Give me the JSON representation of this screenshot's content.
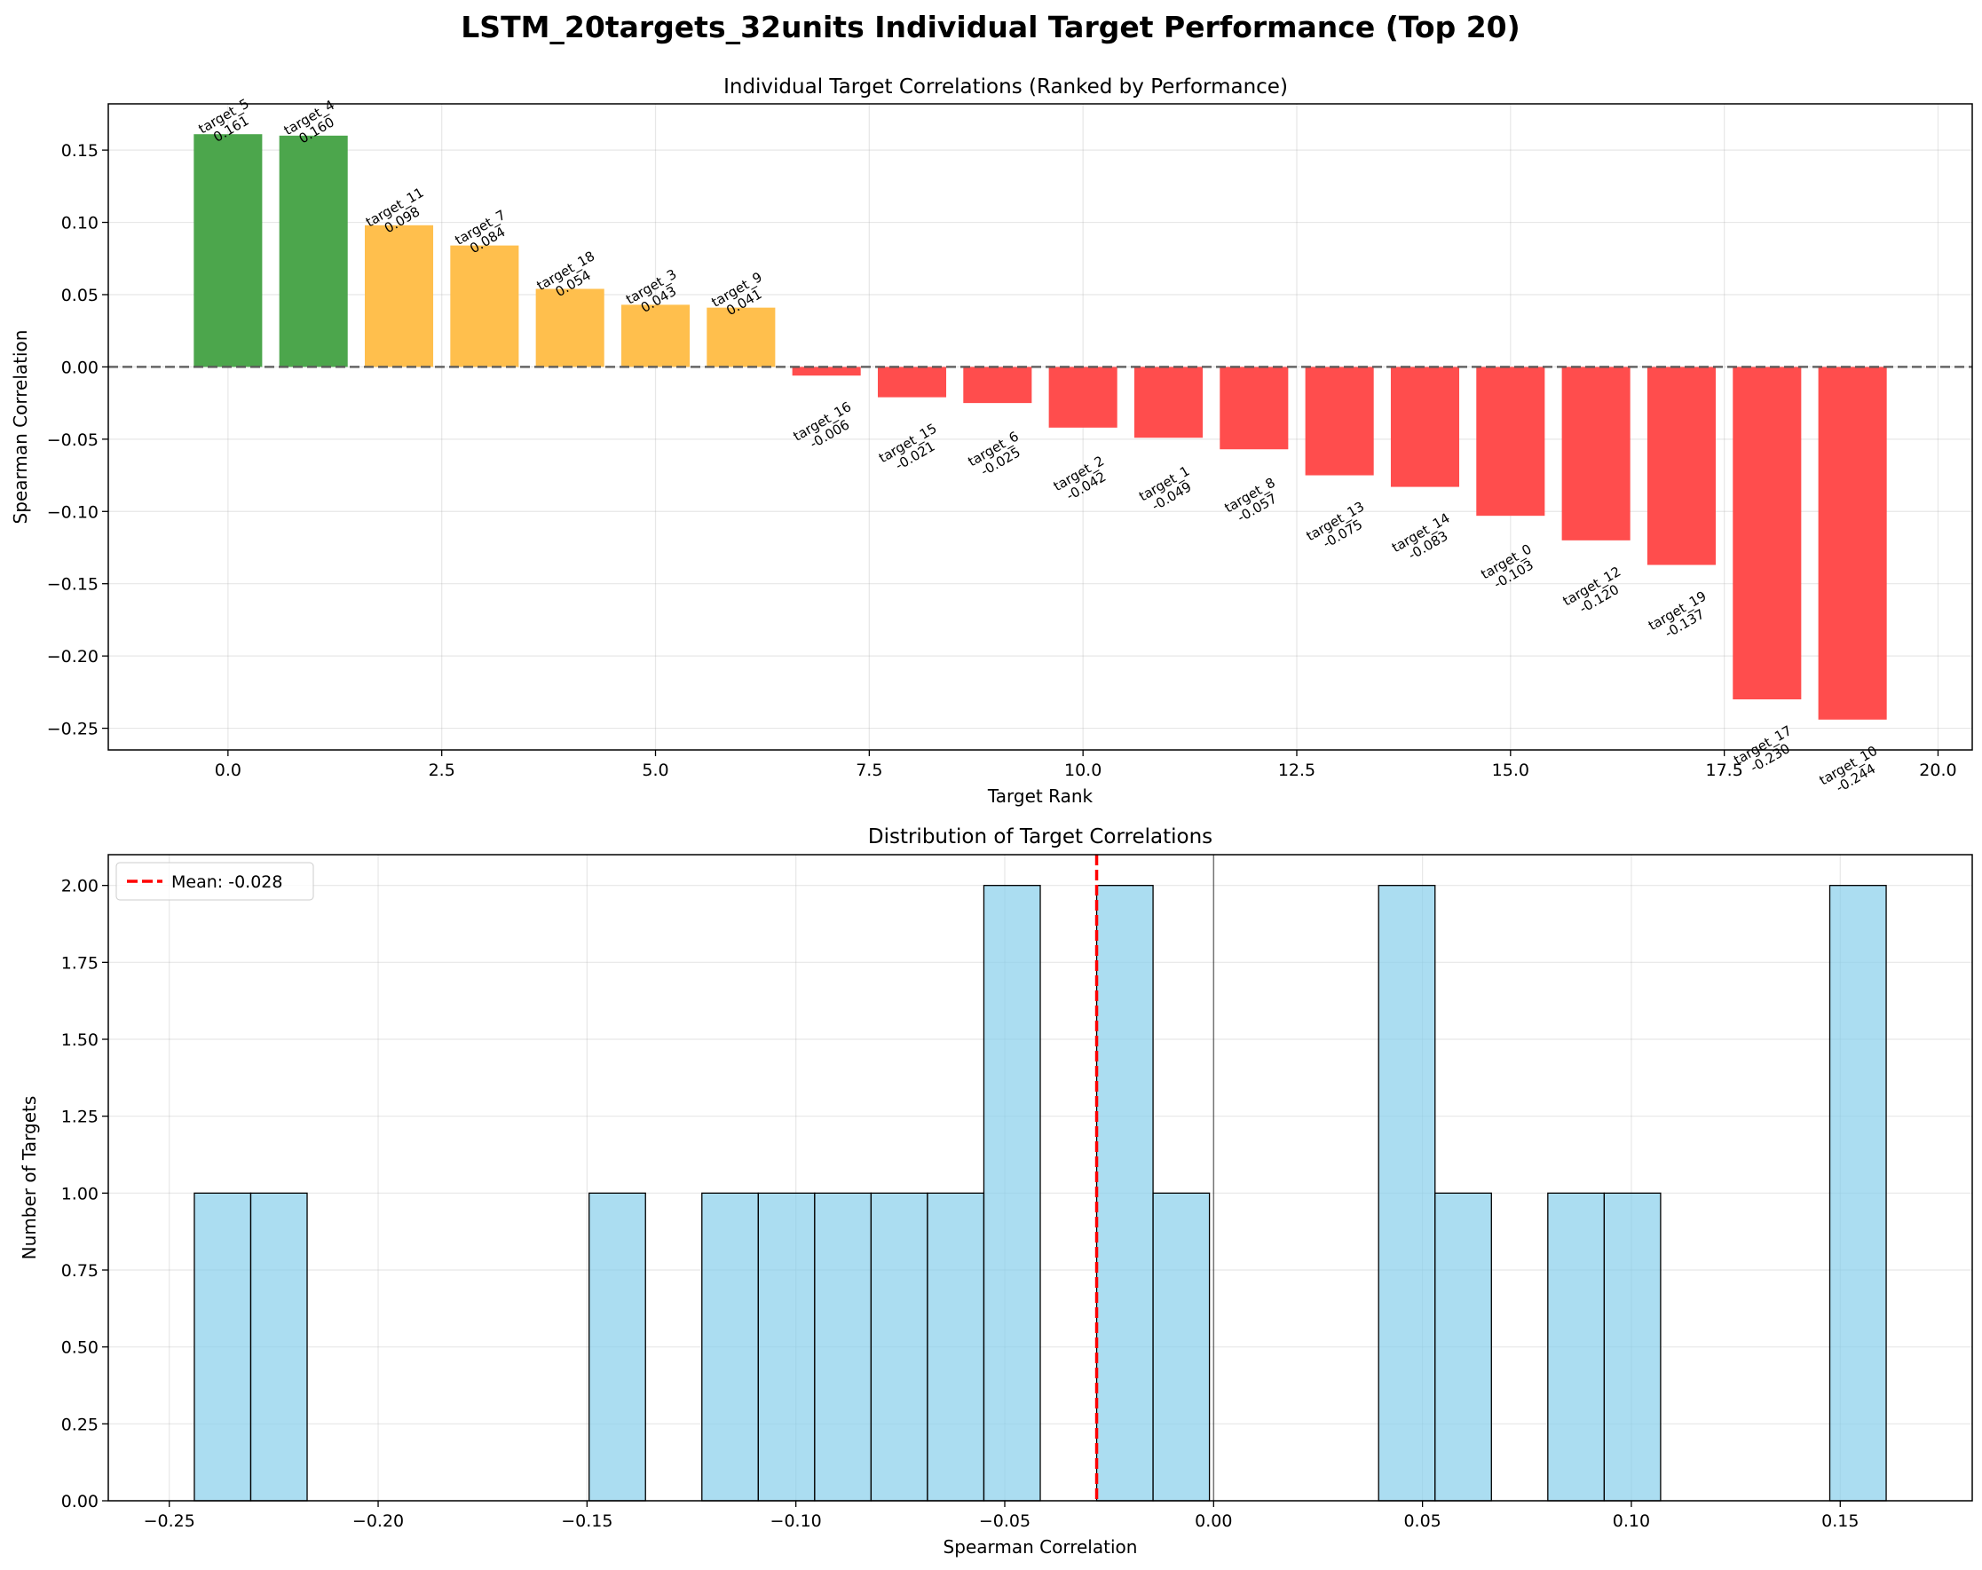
{
  "figure": {
    "suptitle": "LSTM_20targets_32units Individual Target Performance (Top 20)"
  },
  "chart_data": [
    {
      "type": "bar",
      "title": "Individual Target Correlations (Ranked by Performance)",
      "xlabel": "Target Rank",
      "ylabel": "Spearman Correlation",
      "x": [
        0,
        1,
        2,
        3,
        4,
        5,
        6,
        7,
        8,
        9,
        10,
        11,
        12,
        13,
        14,
        15,
        16,
        17,
        18,
        19
      ],
      "categories": [
        "target_5",
        "target_4",
        "target_11",
        "target_7",
        "target_18",
        "target_3",
        "target_9",
        "target_16",
        "target_15",
        "target_6",
        "target_2",
        "target_1",
        "target_8",
        "target_13",
        "target_14",
        "target_0",
        "target_12",
        "target_19",
        "target_17",
        "target_10"
      ],
      "values": [
        0.161,
        0.16,
        0.098,
        0.084,
        0.054,
        0.043,
        0.041,
        -0.006,
        -0.021,
        -0.025,
        -0.042,
        -0.049,
        -0.057,
        -0.075,
        -0.083,
        -0.103,
        -0.12,
        -0.137,
        -0.23,
        -0.244
      ],
      "value_labels": [
        "0.161",
        "0.160",
        "0.098",
        "0.084",
        "0.054",
        "0.043",
        "0.041",
        "-0.006",
        "-0.021",
        "-0.025",
        "-0.042",
        "-0.049",
        "-0.057",
        "-0.075",
        "-0.083",
        "-0.103",
        "-0.120",
        "-0.137",
        "-0.230",
        "-0.244"
      ],
      "colors": [
        "#4ca64c",
        "#4ca64c",
        "#ffbf4d",
        "#ffbf4d",
        "#ffbf4d",
        "#ffbf4d",
        "#ffbf4d",
        "#ff4d4d",
        "#ff4d4d",
        "#ff4d4d",
        "#ff4d4d",
        "#ff4d4d",
        "#ff4d4d",
        "#ff4d4d",
        "#ff4d4d",
        "#ff4d4d",
        "#ff4d4d",
        "#ff4d4d",
        "#ff4d4d",
        "#ff4d4d"
      ],
      "reference_line": {
        "y": 0,
        "style": "dashed",
        "color": "#555555"
      },
      "xlim": [
        -1.4,
        20.4
      ],
      "ylim": [
        -0.265,
        0.182
      ],
      "xticks": [
        0.0,
        2.5,
        5.0,
        7.5,
        10.0,
        12.5,
        15.0,
        17.5,
        20.0
      ],
      "xtick_labels": [
        "0.0",
        "2.5",
        "5.0",
        "7.5",
        "10.0",
        "12.5",
        "15.0",
        "17.5",
        "20.0"
      ],
      "yticks": [
        -0.25,
        -0.2,
        -0.15,
        -0.1,
        -0.05,
        0.0,
        0.05,
        0.1,
        0.15
      ],
      "ytick_labels": [
        "−0.25",
        "−0.20",
        "−0.15",
        "−0.10",
        "−0.05",
        "0.00",
        "0.05",
        "0.10",
        "0.15"
      ],
      "grid": true
    },
    {
      "type": "histogram",
      "title": "Distribution of Target Correlations",
      "xlabel": "Spearman Correlation",
      "ylabel": "Number of Targets",
      "bins": {
        "start": -0.244,
        "end": 0.161,
        "count": 30
      },
      "counts": [
        1,
        1,
        0,
        0,
        0,
        0,
        0,
        1,
        0,
        1,
        1,
        1,
        1,
        1,
        2,
        0,
        2,
        1,
        0,
        0,
        0,
        2,
        1,
        0,
        1,
        1,
        0,
        0,
        0,
        2
      ],
      "bar_color": "#87ceeb",
      "edge_color": "#000000",
      "mean_line": {
        "value": -0.028,
        "legend": "Mean: -0.028",
        "color": "#ff0000"
      },
      "zero_line": {
        "value": 0,
        "color": "#000000"
      },
      "legend_position": "upper-left",
      "xlim": [
        -0.2646,
        0.1816
      ],
      "ylim": [
        0,
        2.1
      ],
      "xticks": [
        -0.25,
        -0.2,
        -0.15,
        -0.1,
        -0.05,
        0.0,
        0.05,
        0.1,
        0.15
      ],
      "xtick_labels": [
        "−0.25",
        "−0.20",
        "−0.15",
        "−0.10",
        "−0.05",
        "0.00",
        "0.05",
        "0.10",
        "0.15"
      ],
      "yticks": [
        0.0,
        0.25,
        0.5,
        0.75,
        1.0,
        1.25,
        1.5,
        1.75,
        2.0
      ],
      "ytick_labels": [
        "0.00",
        "0.25",
        "0.50",
        "0.75",
        "1.00",
        "1.25",
        "1.50",
        "1.75",
        "2.00"
      ],
      "grid": true
    }
  ]
}
